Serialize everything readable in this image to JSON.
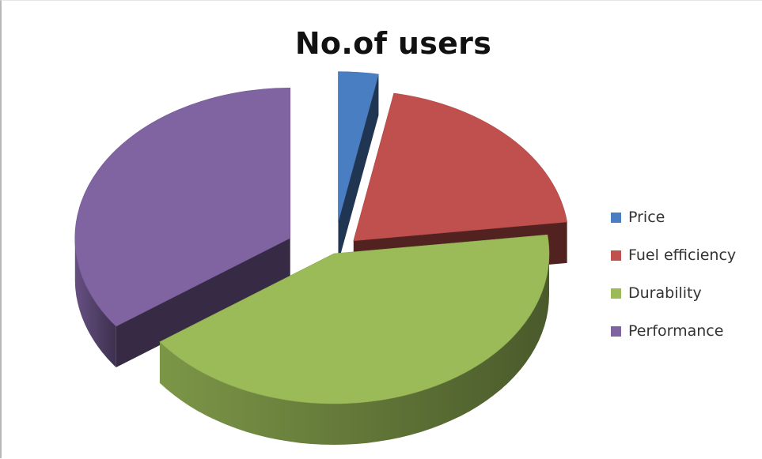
{
  "chart_data": {
    "type": "pie",
    "three_d": true,
    "exploded": true,
    "title": "No.of users",
    "categories": [
      "Price",
      "Fuel efficiency",
      "Durability",
      "Performance"
    ],
    "values": [
      3,
      20,
      42,
      35
    ],
    "colors": [
      "#4a7ec2",
      "#c0504d",
      "#9bbb59",
      "#8064a2"
    ],
    "legend_position": "right"
  }
}
